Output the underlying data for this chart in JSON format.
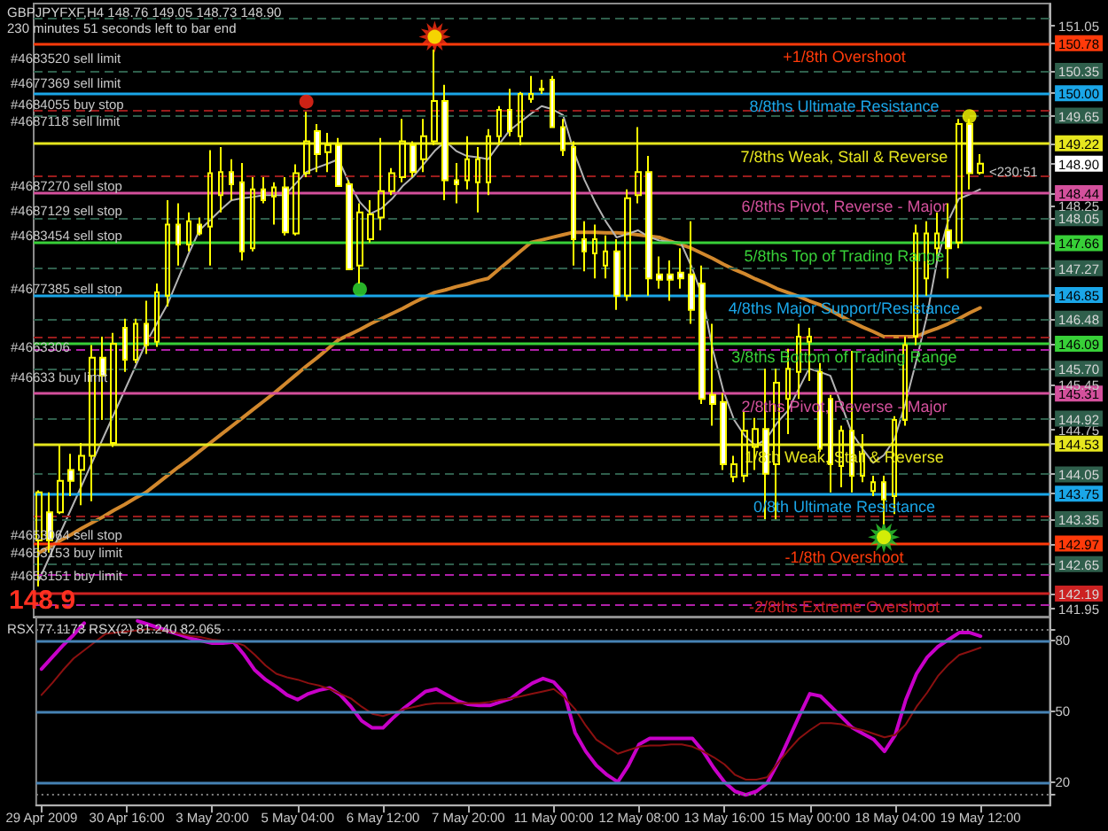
{
  "chart_data": [
    {
      "type": "candlestick",
      "title": "GBPJPYFXF,H4 148.76 149.05 148.73 148.90",
      "subtitle": "230 minutes 51 seconds left to bar end",
      "categories": [
        null,
        null,
        null,
        null,
        null,
        null,
        null,
        null,
        null,
        null,
        null,
        null,
        null,
        null,
        null,
        null,
        null,
        null,
        null,
        null,
        null,
        null,
        null,
        null,
        null,
        null,
        null,
        null,
        null,
        null,
        null,
        null,
        null,
        null,
        null,
        null,
        null,
        null,
        null,
        null,
        null,
        null,
        null,
        null,
        null,
        null,
        null,
        null,
        null,
        null,
        null,
        null,
        null,
        null,
        null,
        null,
        null,
        null,
        null,
        null,
        null,
        null,
        null,
        null,
        null,
        null,
        null,
        null,
        null,
        null,
        null,
        null,
        null,
        null,
        null,
        null,
        null,
        null,
        null,
        null,
        null,
        null,
        null,
        null,
        null,
        null,
        null,
        null,
        null
      ],
      "ohlc": [
        [
          143.02,
          143.8,
          142.3,
          143.77
        ],
        [
          143.46,
          143.77,
          142.83,
          143.02
        ],
        [
          143.46,
          144.51,
          143.43,
          143.95
        ],
        [
          144.12,
          144.37,
          143.71,
          143.95
        ],
        [
          144.12,
          144.54,
          143.57,
          144.34
        ],
        [
          144.34,
          146.07,
          143.63,
          145.87
        ],
        [
          145.87,
          146.2,
          144.9,
          145.59
        ],
        [
          144.54,
          146.26,
          144.48,
          146.09
        ],
        [
          146.34,
          146.48,
          145.65,
          145.84
        ],
        [
          145.84,
          146.48,
          145.79,
          146.4
        ],
        [
          146.4,
          146.76,
          145.93,
          146.07
        ],
        [
          146.12,
          147.03,
          146.04,
          146.89
        ],
        [
          146.84,
          148.33,
          146.67,
          147.95
        ],
        [
          147.95,
          148.28,
          147.31,
          147.64
        ],
        [
          147.64,
          148.14,
          147.53,
          148.0
        ],
        [
          147.95,
          148.06,
          147.78,
          147.81
        ],
        [
          147.92,
          149.11,
          147.31,
          148.75
        ],
        [
          148.41,
          149.16,
          148.14,
          148.77
        ],
        [
          148.77,
          148.97,
          148.33,
          148.58
        ],
        [
          148.61,
          148.91,
          147.39,
          147.53
        ],
        [
          147.58,
          148.69,
          147.53,
          148.5
        ],
        [
          148.5,
          148.69,
          148.28,
          148.33
        ],
        [
          148.39,
          148.61,
          147.95,
          148.53
        ],
        [
          148.53,
          148.69,
          147.78,
          147.83
        ],
        [
          147.81,
          148.89,
          147.78,
          148.75
        ],
        [
          148.75,
          149.71,
          148.69,
          149.25
        ],
        [
          149.41,
          149.52,
          148.77,
          149.05
        ],
        [
          149.08,
          149.38,
          148.77,
          149.19
        ],
        [
          149.19,
          149.3,
          148.55,
          148.55
        ],
        [
          148.58,
          148.64,
          147.25,
          147.25
        ],
        [
          147.31,
          148.28,
          147.03,
          148.14
        ],
        [
          147.72,
          148.33,
          147.67,
          148.11
        ],
        [
          148.06,
          149.3,
          147.86,
          148.47
        ],
        [
          148.47,
          148.83,
          148.41,
          148.75
        ],
        [
          148.69,
          149.6,
          148.61,
          149.25
        ],
        [
          149.19,
          149.25,
          148.69,
          148.77
        ],
        [
          148.97,
          149.6,
          148.77,
          149.33
        ],
        [
          149.25,
          150.68,
          149.19,
          149.88
        ],
        [
          149.88,
          150.13,
          148.33,
          148.64
        ],
        [
          148.64,
          148.91,
          148.28,
          148.58
        ],
        [
          148.64,
          149.33,
          148.5,
          148.97
        ],
        [
          148.61,
          149.16,
          148.14,
          148.97
        ],
        [
          148.61,
          149.44,
          148.41,
          149.33
        ],
        [
          149.33,
          149.8,
          149.19,
          149.74
        ],
        [
          149.74,
          150.07,
          149.33,
          149.41
        ],
        [
          149.33,
          150.02,
          149.19,
          149.99
        ],
        [
          149.91,
          150.27,
          149.85,
          149.99
        ],
        [
          150.05,
          150.21,
          149.99,
          150.07
        ],
        [
          150.21,
          150.27,
          149.47,
          149.47
        ],
        [
          149.47,
          149.6,
          149.02,
          149.11
        ],
        [
          149.16,
          149.25,
          147.31,
          147.72
        ],
        [
          147.72,
          148.0,
          147.22,
          147.53
        ],
        [
          147.5,
          147.95,
          147.11,
          147.72
        ],
        [
          147.31,
          147.78,
          147.11,
          147.53
        ],
        [
          147.53,
          147.72,
          146.62,
          146.84
        ],
        [
          146.84,
          148.5,
          146.76,
          148.36
        ],
        [
          148.41,
          149.47,
          148.28,
          148.77
        ],
        [
          148.77,
          149.02,
          146.84,
          147.11
        ],
        [
          147.17,
          147.45,
          146.95,
          147.09
        ],
        [
          147.17,
          147.39,
          146.76,
          147.09
        ],
        [
          147.2,
          147.58,
          146.95,
          147.11
        ],
        [
          147.17,
          148.0,
          146.4,
          146.62
        ],
        [
          147.03,
          147.31,
          145.15,
          145.23
        ],
        [
          145.29,
          146.4,
          144.81,
          145.15
        ],
        [
          145.18,
          145.32,
          144.12,
          144.21
        ],
        [
          144.01,
          144.34,
          143.93,
          144.21
        ],
        [
          144.03,
          145.04,
          143.93,
          144.73
        ],
        [
          144.48,
          144.93,
          144.12,
          144.76
        ],
        [
          144.76,
          145.7,
          143.35,
          144.06
        ],
        [
          144.21,
          145.7,
          143.35,
          145.48
        ],
        [
          145.23,
          146.01,
          144.68,
          145.7
        ],
        [
          145.65,
          146.4,
          145.23,
          146.2
        ],
        [
          146.12,
          146.34,
          145.51,
          146.2
        ],
        [
          145.65,
          145.79,
          144.4,
          144.45
        ],
        [
          145.23,
          145.29,
          143.77,
          144.21
        ],
        [
          144.18,
          144.81,
          143.85,
          144.73
        ],
        [
          144.73,
          145.98,
          143.77,
          144.03
        ],
        [
          144.03,
          144.68,
          143.93,
          144.37
        ],
        [
          143.79,
          144.03,
          143.71,
          143.93
        ],
        [
          143.93,
          144.03,
          143.27,
          143.66
        ],
        [
          143.71,
          144.96,
          143.43,
          144.9
        ],
        [
          144.9,
          146.2,
          144.81,
          146.07
        ],
        [
          146.2,
          147.95,
          146.07,
          147.81
        ],
        [
          147.11,
          148.0,
          146.84,
          147.81
        ],
        [
          147.58,
          148.14,
          147.39,
          147.81
        ],
        [
          147.86,
          148.28,
          147.11,
          147.58
        ],
        [
          147.67,
          149.6,
          147.58,
          149.52
        ],
        [
          149.52,
          149.6,
          148.5,
          148.75
        ],
        [
          148.76,
          149.05,
          148.73,
          148.9
        ]
      ],
      "color": "#ffff00",
      "colors": [
        null,
        "#ffffff",
        null,
        "#ffffff",
        null,
        null,
        "#ffffff",
        null,
        "#ffffff",
        null,
        "#ffffff",
        null,
        null,
        "#ffffff",
        null,
        "#ffffff",
        null,
        null,
        "#ffffff",
        "#ffffff",
        null,
        "#ffffff",
        null,
        "#ffffff",
        null,
        null,
        "#ffffff",
        null,
        "#ffffff",
        "#ffffff",
        null,
        null,
        null,
        null,
        null,
        "#ffffff",
        null,
        null,
        "#ffffff",
        "#ffffff",
        null,
        null,
        null,
        null,
        "#ffffff",
        null,
        null,
        null,
        "#ffffff",
        "#ffffff",
        "#ffffff",
        "#ffffff",
        null,
        null,
        "#ffffff",
        null,
        null,
        "#ffffff",
        "#ffffff",
        "#ffffff",
        "#ffffff",
        "#ffffff",
        "#ffffff",
        "#ffffff",
        "#ffffff",
        null,
        null,
        null,
        "#ffffff",
        null,
        null,
        null,
        null,
        "#ffffff",
        "#ffffff",
        null,
        "#ffffff",
        null,
        null,
        "#ffffff",
        null,
        null,
        null,
        null,
        null,
        "#ffffff",
        null,
        "#ffffff",
        null
      ],
      "series": [
        {
          "type": "line",
          "color": "#d2882d",
          "values": [
            142.83,
            142.92,
            143.02,
            143.11,
            143.21,
            143.3,
            143.39,
            143.49,
            143.58,
            143.68,
            143.77,
            143.9,
            144.03,
            144.16,
            144.28,
            144.41,
            144.54,
            144.67,
            144.8,
            144.93,
            145.06,
            145.19,
            145.32,
            145.46,
            145.6,
            145.74,
            145.87,
            146.01,
            146.15,
            146.23,
            146.31,
            146.4,
            146.48,
            146.56,
            146.64,
            146.73,
            146.81,
            146.89,
            146.93,
            146.98,
            147.02,
            147.07,
            147.11,
            147.25,
            147.39,
            147.53,
            147.67,
            147.71,
            147.75,
            147.79,
            147.83,
            147.83,
            147.83,
            147.82,
            147.82,
            147.81,
            147.79,
            147.77,
            147.75,
            147.69,
            147.64,
            147.58,
            147.5,
            147.42,
            147.33,
            147.25,
            147.18,
            147.1,
            147.03,
            146.95,
            146.89,
            146.83,
            146.76,
            146.7,
            146.61,
            146.52,
            146.43,
            146.35,
            146.28,
            146.2,
            146.2,
            146.2,
            146.2,
            146.27,
            146.33,
            146.4,
            146.48,
            146.57,
            146.65
          ]
        },
        {
          "type": "line",
          "color": "#b4b4b4",
          "values": [
            142.4,
            142.77,
            143.14,
            143.51,
            143.88,
            144.25,
            144.62,
            144.99,
            145.36,
            145.73,
            146.1,
            146.4,
            146.7,
            147.1,
            147.5,
            147.86,
            148.02,
            148.18,
            148.33,
            148.36,
            148.38,
            148.41,
            148.41,
            148.41,
            148.59,
            148.77,
            148.84,
            148.9,
            148.97,
            148.6,
            148.3,
            148.12,
            148.2,
            148.35,
            148.55,
            148.7,
            148.9,
            149.1,
            149.25,
            149.1,
            149.02,
            149.0,
            148.97,
            149.2,
            149.42,
            149.55,
            149.68,
            149.8,
            149.75,
            149.66,
            149.1,
            148.65,
            148.3,
            148.0,
            147.75,
            147.8,
            147.86,
            147.76,
            147.7,
            147.68,
            147.67,
            147.3,
            146.84,
            146.0,
            145.35,
            144.9,
            144.65,
            144.5,
            144.6,
            144.85,
            145.04,
            145.37,
            145.7,
            145.65,
            145.59,
            145.15,
            144.7,
            144.45,
            144.23,
            144.35,
            144.6,
            145.15,
            145.8,
            146.5,
            147.4,
            148.0,
            148.35,
            148.42,
            148.5
          ]
        },
        {
          "type": "scatter",
          "marker": "star",
          "color": "#ff3010",
          "values": [
            null,
            null,
            null,
            null,
            null,
            null,
            null,
            null,
            null,
            null,
            null,
            null,
            null,
            null,
            null,
            null,
            null,
            null,
            null,
            null,
            null,
            null,
            null,
            null,
            null,
            null,
            null,
            null,
            null,
            null,
            null,
            null,
            null,
            null,
            null,
            null,
            null,
            150.88,
            null,
            null,
            null,
            null,
            null,
            null,
            null,
            null,
            null,
            null,
            null,
            null,
            null,
            null,
            null,
            null,
            null,
            null,
            null,
            null,
            null,
            null,
            null,
            null,
            null,
            null,
            null,
            null,
            null,
            null,
            null,
            null,
            null,
            null,
            null,
            null,
            null,
            null,
            null,
            null,
            null,
            null,
            null,
            null,
            null,
            null,
            null,
            null,
            null,
            null,
            null
          ]
        },
        {
          "type": "scatter",
          "marker": "star",
          "color": "#30d030",
          "values": [
            null,
            null,
            null,
            null,
            null,
            null,
            null,
            null,
            null,
            null,
            null,
            null,
            null,
            null,
            null,
            null,
            null,
            null,
            null,
            null,
            null,
            null,
            null,
            null,
            null,
            null,
            null,
            null,
            null,
            null,
            null,
            null,
            null,
            null,
            null,
            null,
            null,
            null,
            null,
            null,
            null,
            null,
            null,
            null,
            null,
            null,
            null,
            null,
            null,
            null,
            null,
            null,
            null,
            null,
            null,
            null,
            null,
            null,
            null,
            null,
            null,
            null,
            null,
            null,
            null,
            null,
            null,
            null,
            null,
            null,
            null,
            null,
            null,
            null,
            null,
            null,
            null,
            null,
            null,
            143.07,
            null,
            null,
            null,
            null,
            null,
            null,
            null,
            null,
            null
          ]
        },
        {
          "type": "scatter",
          "marker": "circle",
          "color": "#ffff00",
          "values": [
            null,
            null,
            null,
            null,
            null,
            null,
            null,
            null,
            null,
            null,
            null,
            null,
            null,
            null,
            null,
            null,
            null,
            null,
            null,
            null,
            null,
            null,
            null,
            null,
            null,
            null,
            null,
            null,
            null,
            null,
            null,
            null,
            null,
            null,
            null,
            null,
            null,
            150.88,
            null,
            null,
            null,
            null,
            null,
            null,
            null,
            null,
            null,
            null,
            null,
            null,
            null,
            null,
            null,
            null,
            null,
            null,
            null,
            null,
            null,
            null,
            null,
            null,
            null,
            null,
            null,
            null,
            null,
            null,
            null,
            null,
            null,
            null,
            null,
            null,
            null,
            null,
            null,
            null,
            null,
            143.07,
            null,
            null,
            null,
            null,
            null,
            null,
            null,
            149.64,
            null
          ]
        },
        {
          "type": "scatter",
          "marker": "circle",
          "color": "#ff2a1a",
          "values": [
            null,
            null,
            null,
            null,
            null,
            null,
            null,
            null,
            null,
            null,
            null,
            null,
            null,
            null,
            null,
            null,
            null,
            null,
            null,
            null,
            null,
            null,
            null,
            null,
            null,
            149.87,
            null,
            null,
            null,
            null,
            null,
            null,
            null,
            null,
            null,
            null,
            null,
            null,
            null,
            null,
            null,
            null,
            null,
            null,
            null,
            null,
            null,
            null,
            null,
            null,
            null,
            null,
            null,
            null,
            null,
            null,
            null,
            null,
            null,
            null,
            null,
            null,
            null,
            null,
            null,
            null,
            null,
            null,
            null,
            null,
            null,
            null,
            null,
            null,
            null,
            null,
            null,
            null,
            null,
            null,
            null,
            null,
            null,
            null,
            null,
            null,
            null,
            null,
            null
          ]
        },
        {
          "type": "scatter",
          "marker": "circle",
          "color": "#33e033",
          "values": [
            null,
            null,
            null,
            null,
            null,
            null,
            null,
            null,
            null,
            null,
            null,
            null,
            null,
            null,
            null,
            null,
            null,
            null,
            null,
            null,
            null,
            null,
            null,
            null,
            null,
            null,
            null,
            null,
            null,
            null,
            146.94,
            null,
            null,
            null,
            null,
            null,
            null,
            null,
            null,
            null,
            null,
            null,
            null,
            null,
            null,
            null,
            null,
            null,
            null,
            null,
            null,
            null,
            null,
            null,
            null,
            null,
            null,
            null,
            null,
            null,
            null,
            null,
            null,
            null,
            null,
            null,
            null,
            null,
            null,
            null,
            null,
            null,
            null,
            null,
            null,
            null,
            null,
            null,
            null,
            null,
            null,
            null,
            null,
            null,
            null,
            null,
            null,
            null,
            null
          ]
        }
      ],
      "ylim": [
        141.83,
        151.4
      ],
      "yticks": [
        141.95,
        142.19,
        142.65,
        142.97,
        143.35,
        143.75,
        144.05,
        144.53,
        144.75,
        144.92,
        145.31,
        145.45,
        {
          "value": 145.7,
          "label": "145.70"
        },
        146.09,
        146.48,
        146.85,
        147.27,
        147.66,
        148.05,
        148.25,
        148.44,
        {
          "value": 148.9,
          "label": "148.90"
        },
        149.22,
        149.65,
        {
          "value": 150,
          "label": "150.00"
        },
        150.35,
        150.78,
        151.05
      ],
      "tick_labels": "y",
      "ref_lines": [
        {
          "axis": "y",
          "value": 150.78,
          "label": "+1/8th Overshoot",
          "color": "#ff3a0a"
        },
        {
          "axis": "y",
          "value": 150,
          "label": "8/8ths Ultimate Resistance",
          "color": "#1aa6e8"
        },
        {
          "axis": "y",
          "value": 149.22,
          "label": "7/8ths Weak, Stall & Reverse",
          "color": "#e6e61e"
        },
        {
          "axis": "y",
          "value": 148.44,
          "label": "6/8ths Pivot, Reverse - Major",
          "color": "#d4509c"
        },
        {
          "axis": "y",
          "value": 147.66,
          "label": "5/8ths Top of Trading Range",
          "color": "#38d038"
        },
        {
          "axis": "y",
          "value": 146.85,
          "label": "4/8ths Major Support/Resistance",
          "color": "#1aa6e8"
        },
        {
          "axis": "y",
          "value": 146.09,
          "label": "3/8ths Bottom of Trading Range",
          "color": "#38d038"
        },
        {
          "axis": "y",
          "value": 145.31,
          "label": "2/8ths Pivot, Reverse - Major",
          "color": "#d4509c"
        },
        {
          "axis": "y",
          "value": 144.53,
          "label": "1/8th Weak, Stall & Reverse",
          "color": "#e6e61e"
        },
        {
          "axis": "y",
          "value": 143.75,
          "label": "0/8th Ultimate Resistance",
          "color": "#1aa6e8"
        },
        {
          "axis": "y",
          "value": 142.97,
          "label": "-1/8th Overshoot",
          "color": "#ff3a0a"
        },
        {
          "axis": "y",
          "value": 142.19,
          "label": "-2/8ths Extreme Overshoot",
          "color": "#cc2222"
        },
        {
          "axis": "y",
          "value": 151.17,
          "color": "#2f5f4c",
          "line_style": "dashed"
        },
        {
          "axis": "y",
          "value": 150.35,
          "color": "#2f5f4c",
          "line_style": "dashed"
        },
        {
          "axis": "y",
          "value": 149.65,
          "color": "#2f5f4c",
          "line_style": "dashed"
        },
        {
          "axis": "y",
          "value": 148.05,
          "color": "#2f5f4c",
          "line_style": "dashed"
        },
        {
          "axis": "y",
          "value": 147.27,
          "color": "#2f5f4c",
          "line_style": "dashed"
        },
        {
          "axis": "y",
          "value": 146.48,
          "color": "#2f5f4c",
          "line_style": "dashed"
        },
        {
          "axis": "y",
          "value": 145.7,
          "color": "#2f5f4c",
          "line_style": "dashed"
        },
        {
          "axis": "y",
          "value": 144.92,
          "color": "#2f5f4c",
          "line_style": "dashed"
        },
        {
          "axis": "y",
          "value": 144.05,
          "color": "#2f5f4c",
          "line_style": "dashed"
        },
        {
          "axis": "y",
          "value": 143.35,
          "color": "#2f5f4c",
          "line_style": "dashed"
        },
        {
          "axis": "y",
          "value": 142.65,
          "color": "#2f5f4c",
          "line_style": "dashed"
        },
        {
          "axis": "y",
          "value": 149.72,
          "color": "#9a1c1c",
          "line_style": "dashed"
        },
        {
          "axis": "y",
          "value": 148.72,
          "color": "#9a1c1c",
          "line_style": "dashed"
        },
        {
          "axis": "y",
          "value": 146.18,
          "color": "#9a1c1c",
          "line_style": "dashed"
        },
        {
          "axis": "y",
          "value": 146,
          "color": "#b020a8",
          "line_style": "dashed"
        },
        {
          "axis": "y",
          "value": 143.4,
          "color": "#9a1c1c",
          "line_style": "dashed"
        },
        {
          "axis": "y",
          "value": 142.5,
          "color": "#b020a8",
          "line_style": "dashed"
        },
        {
          "axis": "y",
          "value": 142.02,
          "color": "#b020a8",
          "line_style": "dashed"
        }
      ],
      "annotations": [
        "148.9",
        "#4683520 sell limit",
        "#4677369 sell limit",
        "#4684055 buy stop",
        "#4687118 sell limit",
        "#4687270 sell stop",
        "#4687129 sell stop",
        "#4683454 sell stop",
        "#4677385 sell stop",
        "#4663306",
        "#46633 buy limit",
        "#4653064 sell stop",
        "#4653153 buy limit",
        "#4653151 buy limit",
        "<230:51"
      ]
    },
    {
      "type": "line",
      "title": "RSX 77.1173 RSX(2) 81.240 82.065",
      "categories": [
        "29 Apr 2009",
        null,
        null,
        null,
        null,
        null,
        null,
        null,
        "30 Apr 16:00",
        null,
        null,
        null,
        null,
        null,
        null,
        null,
        "3 May 20:00",
        null,
        null,
        null,
        null,
        null,
        null,
        null,
        "5 May 04:00",
        null,
        null,
        null,
        null,
        null,
        null,
        null,
        "6 May 12:00",
        null,
        null,
        null,
        null,
        null,
        null,
        null,
        "7 May 20:00",
        null,
        null,
        null,
        null,
        null,
        null,
        null,
        "11 May 00:00",
        null,
        null,
        null,
        null,
        null,
        null,
        null,
        "12 May 08:00",
        null,
        null,
        null,
        null,
        null,
        null,
        null,
        "13 May 16:00",
        null,
        null,
        null,
        null,
        null,
        null,
        null,
        "15 May 00:00",
        null,
        null,
        null,
        null,
        null,
        null,
        null,
        "18 May 04:00",
        null,
        null,
        null,
        null,
        null,
        null,
        null,
        "19 May 12:00"
      ],
      "series": [
        {
          "color": "#c800c8",
          "values": [
            68,
            73,
            78,
            82.5,
            87.5,
            null,
            null,
            null,
            null,
            88.5,
            87,
            85.5,
            84,
            82.5,
            81,
            80,
            79,
            79,
            79.5,
            74,
            67.5,
            63.5,
            60.5,
            57,
            55,
            57.5,
            59,
            60,
            57,
            52,
            46,
            43,
            43,
            47.5,
            51.5,
            55,
            58.5,
            59.5,
            57,
            54.5,
            53,
            52.5,
            52.5,
            54,
            55.5,
            59,
            62,
            64,
            62.5,
            57.5,
            41,
            33,
            27,
            23,
            20,
            27,
            36,
            38.5,
            38.5,
            38.5,
            38.5,
            38.5,
            33,
            26,
            20,
            16,
            14.5,
            16,
            19.5,
            28,
            38,
            48,
            57.5,
            56.5,
            52,
            47.5,
            43,
            40.5,
            38,
            33,
            40,
            55,
            66,
            73,
            77.5,
            80.5,
            83.5,
            83.5,
            82
          ]
        },
        {
          "color": "#8b1010",
          "values": [
            57,
            62,
            67.5,
            72.5,
            76,
            79.5,
            83,
            83.5,
            84,
            84.5,
            85,
            84.5,
            84,
            83,
            82,
            81.5,
            80.5,
            80,
            79.5,
            78,
            74,
            69.5,
            66,
            64.5,
            63.5,
            62,
            61,
            59.5,
            57.5,
            55.5,
            52,
            49,
            48,
            49.5,
            51,
            52,
            53,
            53.5,
            53.5,
            53.5,
            53.5,
            53.5,
            54,
            55,
            55.5,
            56.5,
            57.5,
            58.5,
            59.5,
            56,
            51,
            44,
            38,
            35,
            32,
            33.5,
            35,
            35.5,
            35.5,
            36,
            36,
            35,
            33,
            30.5,
            27.5,
            23,
            21,
            21,
            22,
            28,
            33.5,
            38.5,
            42,
            45,
            45,
            44.5,
            43,
            42,
            40.5,
            39,
            40,
            44.5,
            52,
            58,
            65,
            70,
            74,
            75.5,
            77.1
          ]
        }
      ],
      "ylim": [
        10,
        90
      ],
      "yticks": [
        {
          "value": 15,
          "label": null
        },
        20,
        50,
        80,
        {
          "value": 85,
          "label": null
        }
      ],
      "ref_lines": [
        {
          "axis": "y",
          "value": 85,
          "color": "#808080",
          "line_style": "dotted"
        },
        {
          "axis": "y",
          "value": 80,
          "color": "#4682b4"
        },
        {
          "axis": "y",
          "value": 50,
          "color": "#4682b4"
        },
        {
          "axis": "y",
          "value": 20,
          "color": "#4682b4"
        },
        {
          "axis": "y",
          "value": 15,
          "color": "#808080",
          "line_style": "dotted"
        }
      ]
    }
  ]
}
